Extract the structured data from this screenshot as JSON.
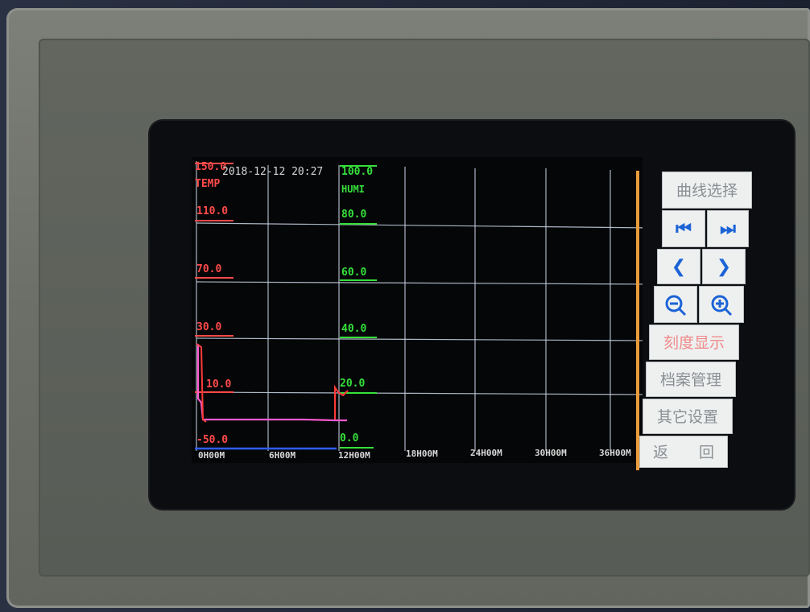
{
  "header": {
    "datetime": "2018-12-12 20:27"
  },
  "temp_axis": {
    "name": "TEMP",
    "ticks": [
      "150.0",
      "110.0",
      "70.0",
      "30.0",
      "10.0",
      "-50.0"
    ],
    "color": "#ff4a4a"
  },
  "humi_axis": {
    "name": "HUMI",
    "ticks": [
      "100.0",
      "80.0",
      "60.0",
      "40.0",
      "20.0",
      "0.0"
    ],
    "color": "#35e03a"
  },
  "time_axis": {
    "ticks": [
      "0H00M",
      "6H00M",
      "12H00M",
      "18H00M",
      "24H00M",
      "30H00M",
      "36H00M"
    ]
  },
  "sidebar": {
    "curve_select": "曲线选择",
    "first_icon": "skip-first-icon",
    "last_icon": "skip-last-icon",
    "prev_icon": "prev-icon",
    "next_icon": "next-icon",
    "zoom_out_icon": "zoom-out-icon",
    "zoom_in_icon": "zoom-in-icon",
    "scale_display": "刻度显示",
    "file_manage": "档案管理",
    "other_settings": "其它设置",
    "back": "返　　回"
  },
  "colors": {
    "temp_line": "#ff5ad0",
    "grid": "#c9d6e6",
    "accent_blue": "#1c63d6",
    "active_text": "#f08a8a"
  }
}
